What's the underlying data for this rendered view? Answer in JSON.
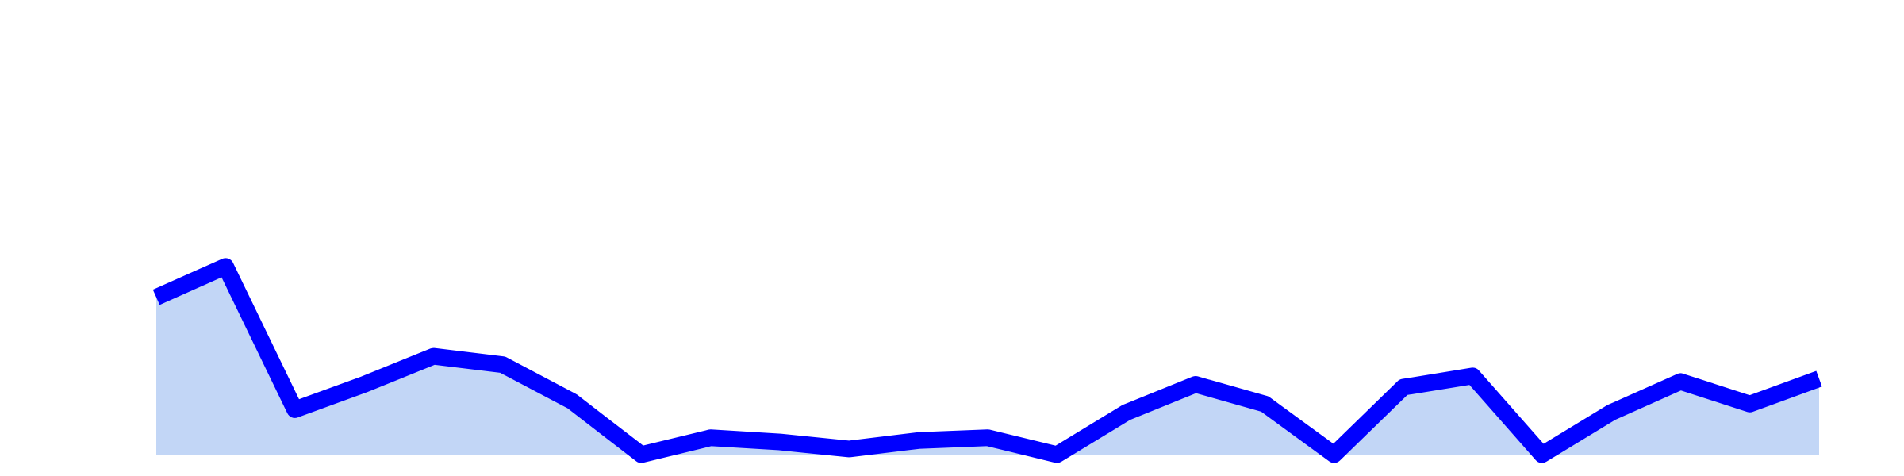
{
  "chart_data": {
    "type": "area",
    "title": "",
    "xlabel": "",
    "ylabel": "",
    "grid": false,
    "legend": "none",
    "ylim": [
      0,
      100
    ],
    "x": [
      1,
      2,
      3,
      4,
      5,
      6,
      7,
      8,
      9,
      10,
      11,
      12,
      13,
      14,
      15,
      16,
      17,
      18,
      19,
      20,
      21,
      22,
      23,
      24,
      25
    ],
    "series": [
      {
        "values": [
          56,
          67,
          16,
          25,
          35,
          32,
          19,
          0,
          6,
          4.5,
          2,
          5,
          6,
          0,
          15,
          25,
          18,
          0,
          24,
          28,
          0,
          15,
          26,
          18,
          27
        ],
        "line_color": "#0000ff",
        "fill_color": "#c2d6f6"
      }
    ]
  }
}
